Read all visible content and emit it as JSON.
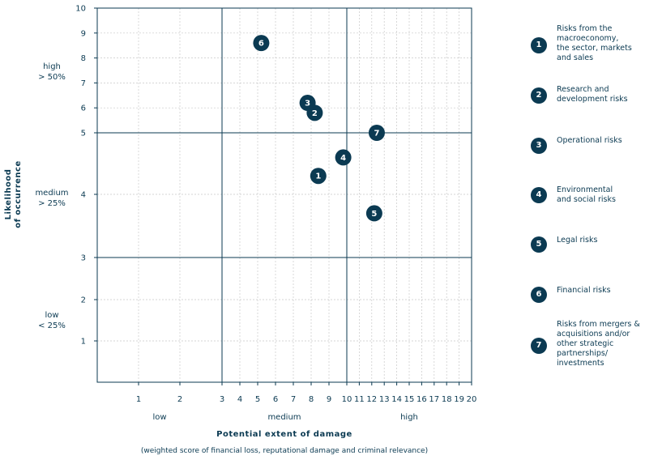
{
  "chart_data": {
    "type": "scatter",
    "title": "",
    "xlabel": "Potential extent of damage",
    "xsubtitle": "(weighted score of financial loss, reputational damage and criminal relevance)",
    "ylabel_lines": [
      "Likelihood",
      "of occurrence"
    ],
    "x_scale": "log",
    "y_scale": "log",
    "xlim": [
      0.5,
      20
    ],
    "ylim": [
      0.5,
      10
    ],
    "x_ticks": [
      "1",
      "2",
      "3",
      "4",
      "5",
      "6",
      "7",
      "8",
      "9",
      "10",
      "11",
      "12",
      "13",
      "14",
      "15",
      "16",
      "17",
      "18",
      "19",
      "20"
    ],
    "y_ticks": [
      "1",
      "2",
      "3",
      "4",
      "5",
      "6",
      "7",
      "8",
      "9",
      "10"
    ],
    "x_bands": [
      "low",
      "medium",
      "high"
    ],
    "y_bands": [
      [
        "high",
        "> 50%"
      ],
      [
        "medium",
        "> 25%"
      ],
      [
        "low",
        "< 25%"
      ]
    ],
    "points": [
      {
        "label": "1",
        "x": 8.4,
        "y": 4.3
      },
      {
        "label": "2",
        "x": 8.2,
        "y": 5.8
      },
      {
        "label": "3",
        "x": 7.8,
        "y": 6.2
      },
      {
        "label": "4",
        "x": 9.8,
        "y": 4.6
      },
      {
        "label": "5",
        "x": 12.2,
        "y": 3.7
      },
      {
        "label": "6",
        "x": 5.2,
        "y": 8.6
      },
      {
        "label": "7",
        "x": 12.4,
        "y": 5.0
      }
    ],
    "legend": [
      {
        "label": "1",
        "text": "Risks from the\nmacroeconomy,\nthe sector, markets\nand sales"
      },
      {
        "label": "2",
        "text": "Research and\ndevelopment risks"
      },
      {
        "label": "3",
        "text": "Operational risks"
      },
      {
        "label": "4",
        "text": "Environmental\nand social risks"
      },
      {
        "label": "5",
        "text": "Legal risks"
      },
      {
        "label": "6",
        "text": "Financial risks"
      },
      {
        "label": "7",
        "text": "Risks from mergers &\nacquisitions and/or\nother strategic\npartnerships/\ninvestments"
      }
    ],
    "colors": {
      "marker": "#0b3a52",
      "grid": "#c8c8c8",
      "axis": "#0b3a52"
    }
  }
}
